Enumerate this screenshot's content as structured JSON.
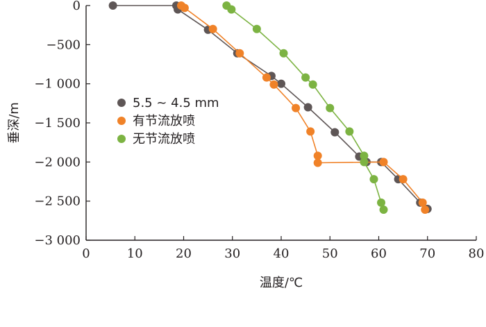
{
  "chart_data": {
    "type": "scatter",
    "xlabel": "温度/℃",
    "ylabel": "垂深/m",
    "xlim": [
      0,
      80
    ],
    "ylim": [
      -3000,
      0
    ],
    "x_ticks": [
      "0",
      "10",
      "20",
      "30",
      "40",
      "50",
      "60",
      "70",
      "80"
    ],
    "y_ticks": [
      "0",
      "−500",
      "−1 000",
      "−1 500",
      "−2 000",
      "−2 500",
      "−3 000"
    ],
    "x_tick_values": [
      0,
      10,
      20,
      30,
      40,
      50,
      60,
      70,
      80
    ],
    "y_tick_values": [
      0,
      -500,
      -1000,
      -1500,
      -2000,
      -2500,
      -3000
    ],
    "grid": false,
    "legend_position": "left",
    "series": [
      {
        "name": "5.5 ~ 4.5 mm",
        "color": "#5e5656",
        "points": [
          [
            5.5,
            0
          ],
          [
            18.5,
            0
          ],
          [
            18.8,
            -50
          ],
          [
            25,
            -310
          ],
          [
            31,
            -610
          ],
          [
            38,
            -900
          ],
          [
            40,
            -1000
          ],
          [
            45.5,
            -1300
          ],
          [
            51,
            -1620
          ],
          [
            56,
            -1930
          ],
          [
            57.5,
            -2000
          ],
          [
            60.5,
            -2000
          ],
          [
            64,
            -2220
          ],
          [
            68.5,
            -2520
          ],
          [
            70,
            -2600
          ]
        ]
      },
      {
        "name": "有节流放喷",
        "color": "#f08228",
        "points": [
          [
            19.5,
            0
          ],
          [
            20.2,
            -30
          ],
          [
            26,
            -300
          ],
          [
            31.5,
            -610
          ],
          [
            37,
            -920
          ],
          [
            38.5,
            -1010
          ],
          [
            43,
            -1310
          ],
          [
            46,
            -1610
          ],
          [
            47.5,
            -1920
          ],
          [
            47.5,
            -2010
          ],
          [
            61,
            -2000
          ],
          [
            65,
            -2220
          ],
          [
            69,
            -2520
          ],
          [
            69.5,
            -2610
          ]
        ]
      },
      {
        "name": "无节流放喷",
        "color": "#7cb342",
        "points": [
          [
            28.8,
            0
          ],
          [
            29.8,
            -50
          ],
          [
            35,
            -300
          ],
          [
            40.5,
            -610
          ],
          [
            45,
            -920
          ],
          [
            46.5,
            -1010
          ],
          [
            50,
            -1310
          ],
          [
            54,
            -1610
          ],
          [
            57,
            -1920
          ],
          [
            57,
            -2000
          ],
          [
            59,
            -2220
          ],
          [
            60.5,
            -2520
          ],
          [
            61,
            -2610
          ]
        ]
      }
    ]
  }
}
